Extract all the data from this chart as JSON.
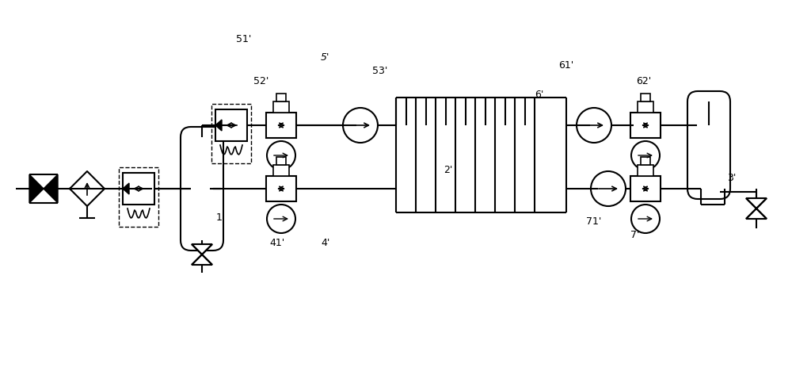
{
  "bg_color": "#ffffff",
  "line_color": "#000000",
  "lw": 1.5,
  "fig_width": 10.0,
  "fig_height": 4.73,
  "labels": {
    "1p": [
      2.97,
      3.52,
      "1'"
    ],
    "2p": [
      5.55,
      2.82,
      "2'"
    ],
    "3p": [
      9.32,
      2.32,
      "3'"
    ],
    "4p": [
      4.65,
      3.72,
      "4'"
    ],
    "5p": [
      3.82,
      0.72,
      "5'"
    ],
    "41p": [
      3.95,
      3.32,
      "41'"
    ],
    "51p": [
      2.82,
      1.72,
      "51'"
    ],
    "52p": [
      2.88,
      0.42,
      "52'"
    ],
    "53p": [
      4.42,
      0.42,
      "53'"
    ],
    "6p": [
      6.65,
      0.52,
      "6'"
    ],
    "61p": [
      6.38,
      1.02,
      "61'"
    ],
    "62p": [
      7.22,
      0.42,
      "62'"
    ],
    "7p": [
      7.08,
      3.12,
      "7'"
    ],
    "71p": [
      6.72,
      2.92,
      "71'"
    ]
  }
}
